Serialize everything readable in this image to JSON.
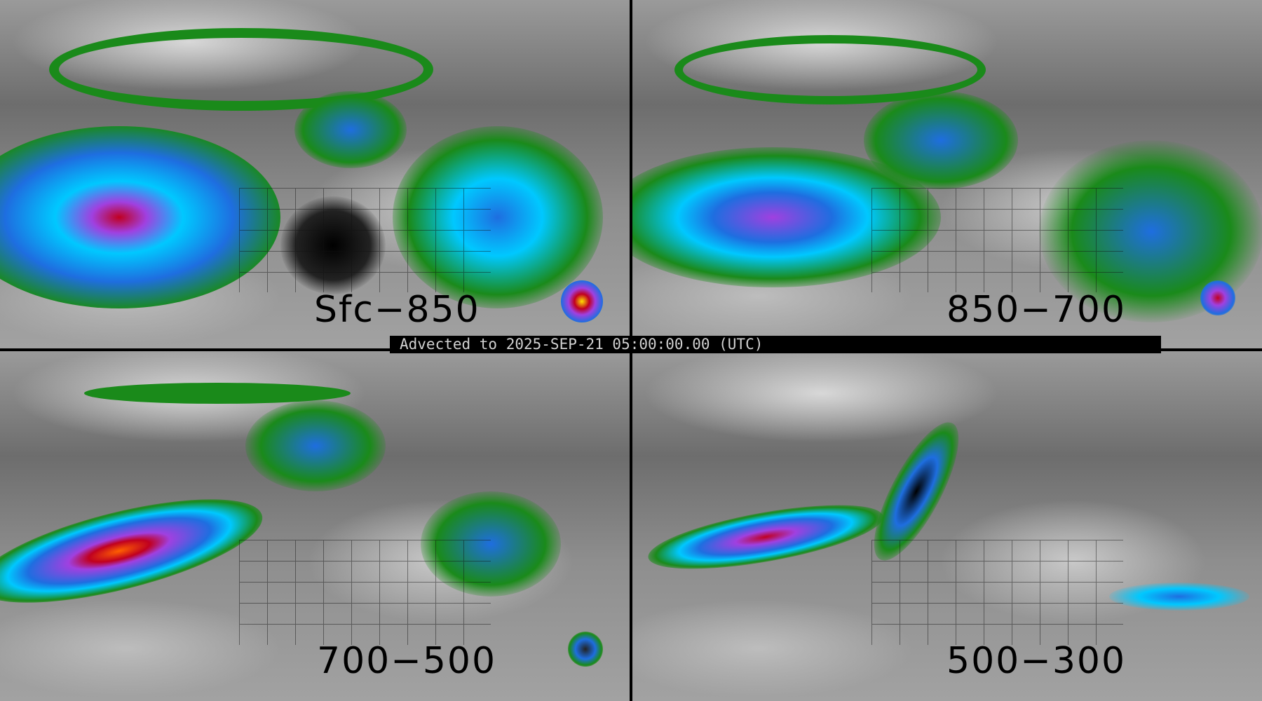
{
  "panels": [
    {
      "label": "Sfc−850"
    },
    {
      "label": "850−700"
    },
    {
      "label": "700−500"
    },
    {
      "label": "500−300"
    }
  ],
  "banner": {
    "text": "Advected to 2025-SEP-21 05:00:00.00 (UTC)"
  },
  "colors": {
    "green": "#1a8a1a",
    "blue": "#1e6ee0",
    "cyan": "#00c8ff",
    "purple": "#a040e0",
    "red": "#c00020",
    "background": "#000000"
  }
}
